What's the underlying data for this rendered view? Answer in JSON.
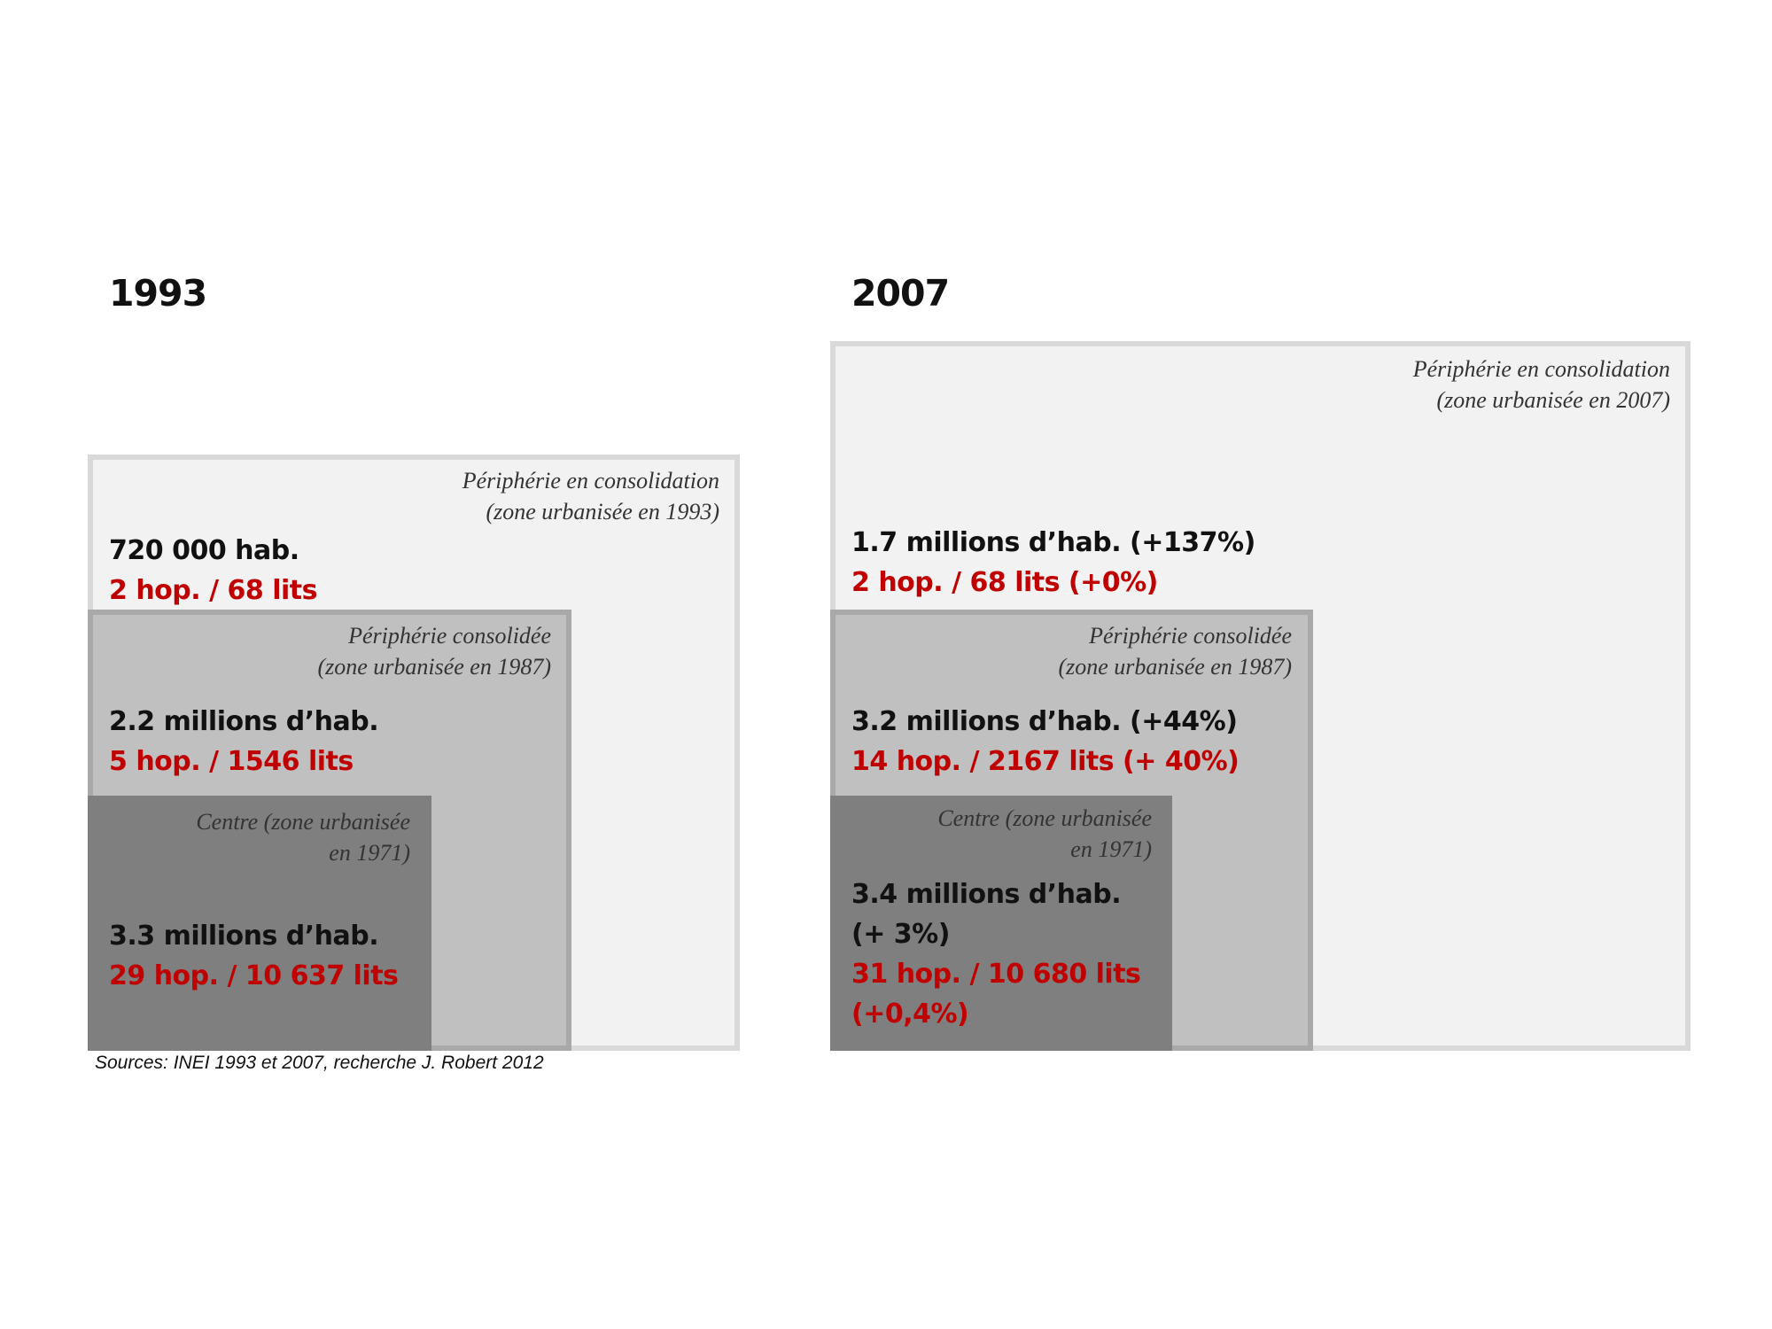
{
  "panels": {
    "y1993": {
      "year": "1993",
      "outer": {
        "label_line1": "Périphérie en consolidation",
        "label_line2": "(zone urbanisée en 1993)",
        "population": "720 000 hab.",
        "hospitals": "2 hop. / 68 lits"
      },
      "middle": {
        "label_line1": "Périphérie consolidée",
        "label_line2": "(zone urbanisée en 1987)",
        "population": "2.2 millions d’hab.",
        "hospitals": "5 hop. / 1546 lits"
      },
      "inner": {
        "label_line1": "Centre (zone urbanisée",
        "label_line2": "en 1971)",
        "population": "3.3 millions d’hab.",
        "hospitals": "29 hop. / 10 637 lits"
      }
    },
    "y2007": {
      "year": "2007",
      "outer": {
        "label_line1": "Périphérie en consolidation",
        "label_line2": "(zone urbanisée en 2007)",
        "population": "1.7 millions d’hab. (+137%)",
        "hospitals": "2 hop. / 68 lits  (+0%)"
      },
      "middle": {
        "label_line1": "Périphérie consolidée",
        "label_line2": "(zone urbanisée en 1987)",
        "population": "3.2 millions d’hab. (+44%)",
        "hospitals": "14 hop. / 2167 lits (+ 40%)"
      },
      "inner": {
        "label_line1": "Centre (zone urbanisée",
        "label_line2": "en 1971)",
        "population_line1": "3.4 millions d’hab.",
        "population_line2": "(+ 3%)",
        "hospitals_line1": "31 hop. / 10 680 lits",
        "hospitals_line2": "(+0,4%)"
      }
    }
  },
  "source": "Sources: INEI 1993 et 2007, recherche J. Robert 2012",
  "colors": {
    "outer_fill": "#f2f2f2",
    "middle_fill": "#c0c0c0",
    "inner_fill": "#7f7f7f",
    "population_text": "#111111",
    "hospitals_text": "#c00000"
  }
}
